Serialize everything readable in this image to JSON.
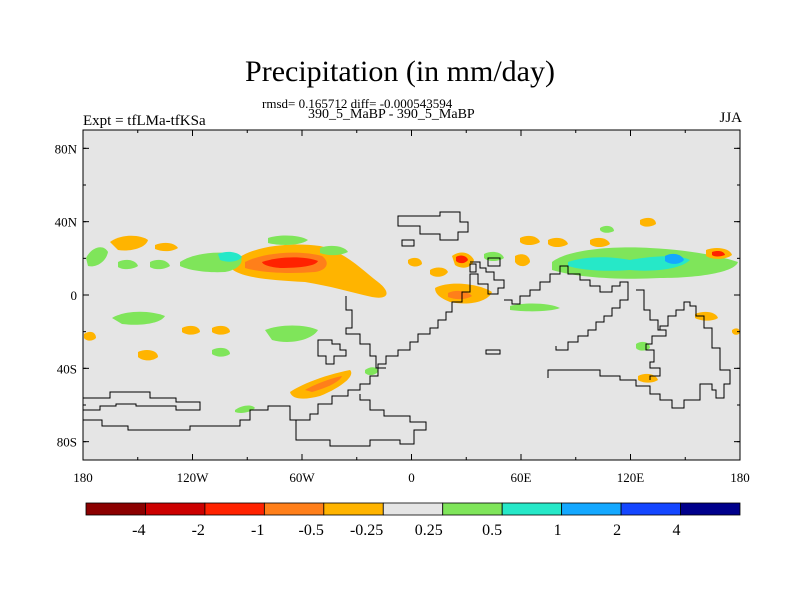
{
  "title": "Precipitation (in mm/day)",
  "stats_line": "rmsd= 0.165712 diff= -0.000543594",
  "case_line": "390_5_MaBP - 390_5_MaBP",
  "experiment_label": "Expt = tfLMa-tfKSa",
  "season_label": "JJA",
  "colors": {
    "ocean_background": "#e5e5e5",
    "coastline": "#000000"
  },
  "chart_data": {
    "type": "contour-map",
    "variable": "Precipitation difference",
    "units": "mm/day",
    "x_axis": {
      "range": [
        -180,
        180
      ],
      "ticks": [
        "180",
        "120W",
        "60W",
        "0",
        "60E",
        "120E",
        "180"
      ]
    },
    "y_axis": {
      "range": [
        -90,
        90
      ],
      "ticks": [
        "80N",
        "40N",
        "0",
        "40S",
        "80S"
      ]
    },
    "colorbar": {
      "labels": [
        "-4",
        "-2",
        "-1",
        "-0.5",
        "-0.25",
        "0.25",
        "0.5",
        "1",
        "2",
        "4"
      ],
      "colors": [
        "#8b0000",
        "#cc0000",
        "#ff2200",
        "#ff7f1a",
        "#ffb400",
        "#e5e5e5",
        "#7fe55a",
        "#26e8c8",
        "#14a8ff",
        "#1446ff",
        "#00008b"
      ]
    }
  }
}
